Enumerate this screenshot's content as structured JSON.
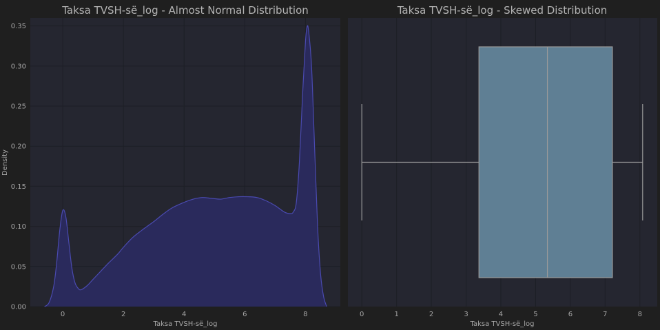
{
  "chart_data": [
    {
      "type": "area",
      "subtype": "kde",
      "title": "Taksa TVSH-së_log - Almost Normal Distribution",
      "xlabel": "Taksa TVSH-së_log",
      "ylabel": "Density",
      "xlim": [
        -1.07,
        9.15
      ],
      "ylim": [
        0,
        0.36
      ],
      "xticks": [
        "0",
        "2",
        "4",
        "6",
        "8"
      ],
      "xtick_values": [
        0,
        2,
        4,
        6,
        8
      ],
      "yticks": [
        "0.00",
        "0.05",
        "0.10",
        "0.15",
        "0.20",
        "0.25",
        "0.30",
        "0.35"
      ],
      "ytick_values": [
        0,
        0.05,
        0.1,
        0.15,
        0.2,
        0.25,
        0.3,
        0.35
      ],
      "grid": true,
      "fill_color": "#2a2a5c",
      "line_color": "#4a4ab0",
      "x": [
        -0.6,
        -0.45,
        -0.3,
        -0.2,
        -0.1,
        0,
        0.1,
        0.2,
        0.3,
        0.4,
        0.5,
        0.6,
        0.8,
        1.0,
        1.2,
        1.5,
        1.8,
        2.0,
        2.3,
        2.6,
        3.0,
        3.3,
        3.6,
        4.0,
        4.3,
        4.6,
        4.9,
        5.2,
        5.5,
        5.8,
        6.1,
        6.4,
        6.7,
        7.0,
        7.3,
        7.5,
        7.6,
        7.7,
        7.8,
        7.9,
        8.0,
        8.05,
        8.1,
        8.2,
        8.3,
        8.4,
        8.5,
        8.6,
        8.7
      ],
      "values": [
        0.0,
        0.005,
        0.025,
        0.055,
        0.095,
        0.12,
        0.112,
        0.08,
        0.048,
        0.03,
        0.023,
        0.021,
        0.026,
        0.034,
        0.042,
        0.054,
        0.065,
        0.074,
        0.086,
        0.095,
        0.106,
        0.115,
        0.123,
        0.13,
        0.134,
        0.136,
        0.135,
        0.134,
        0.136,
        0.137,
        0.137,
        0.136,
        0.132,
        0.126,
        0.118,
        0.116,
        0.118,
        0.13,
        0.18,
        0.26,
        0.33,
        0.348,
        0.345,
        0.3,
        0.2,
        0.1,
        0.04,
        0.012,
        0.0
      ]
    },
    {
      "type": "boxplot",
      "title": "Taksa TVSH-së_log - Skewed Distribution",
      "xlabel": "Taksa TVSH-së_log",
      "xlim": [
        -0.4,
        8.5
      ],
      "xticks": [
        "0",
        "1",
        "2",
        "3",
        "4",
        "5",
        "6",
        "7",
        "8"
      ],
      "xtick_values": [
        0,
        1,
        2,
        3,
        4,
        5,
        6,
        7,
        8
      ],
      "grid": true,
      "box_color": "#5f7f94",
      "line_color": "#9a9a9a",
      "whisker_low": 0.0,
      "q1": 3.37,
      "median": 5.34,
      "q3": 7.21,
      "whisker_high": 8.08
    }
  ]
}
